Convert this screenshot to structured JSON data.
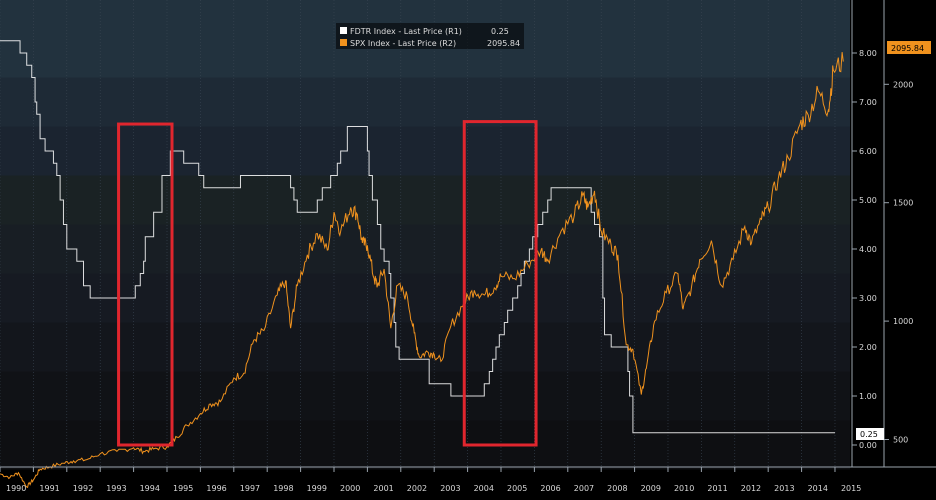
{
  "chart_data": {
    "type": "line",
    "legend": {
      "placement": "top-center",
      "entries": [
        {
          "label": "FDTR Index - Last Price (R1)",
          "last_value": "0.25",
          "color": "#ffffff"
        },
        {
          "label": "SPX Index - Last Price (R2)",
          "last_value": "2095.84",
          "color": "#f0921e"
        }
      ]
    },
    "x_axis": {
      "ticks": [
        "1990",
        "1991",
        "1992",
        "1993",
        "1994",
        "1995",
        "1996",
        "1997",
        "1998",
        "1999",
        "2000",
        "2001",
        "2002",
        "2003",
        "2004",
        "2005",
        "2006",
        "2007",
        "2008",
        "2009",
        "2010",
        "2011",
        "2012",
        "2013",
        "2014",
        "2015"
      ],
      "range": [
        1990.0,
        2015.3
      ]
    },
    "y_axis_rate": {
      "ticks": [
        "0.00",
        "1.00",
        "2.00",
        "3.00",
        "4.00",
        "5.00",
        "6.00",
        "7.00",
        "8.00"
      ],
      "range": [
        0,
        8
      ]
    },
    "y_axis_spx": {
      "ticks": [
        "500",
        "1000",
        "1500",
        "2000"
      ],
      "range": [
        250,
        2130
      ]
    },
    "last_value_labels": {
      "fdtr": "0.25",
      "spx": "2095.84"
    },
    "series": [
      {
        "name": "FDTR Index - Last Price",
        "axis": "R1",
        "color": "#ffffff",
        "step": true,
        "points": [
          [
            1990.0,
            8.25
          ],
          [
            1990.5,
            8.25
          ],
          [
            1990.6,
            8.0
          ],
          [
            1990.8,
            7.75
          ],
          [
            1990.95,
            7.5
          ],
          [
            1991.05,
            7.0
          ],
          [
            1991.1,
            6.75
          ],
          [
            1991.2,
            6.25
          ],
          [
            1991.35,
            6.0
          ],
          [
            1991.6,
            5.75
          ],
          [
            1991.7,
            5.5
          ],
          [
            1991.8,
            5.0
          ],
          [
            1991.9,
            4.5
          ],
          [
            1992.0,
            4.0
          ],
          [
            1992.3,
            3.75
          ],
          [
            1992.5,
            3.25
          ],
          [
            1992.7,
            3.0
          ],
          [
            1994.05,
            3.25
          ],
          [
            1994.2,
            3.5
          ],
          [
            1994.3,
            3.75
          ],
          [
            1994.35,
            4.25
          ],
          [
            1994.6,
            4.75
          ],
          [
            1994.85,
            5.5
          ],
          [
            1995.1,
            6.0
          ],
          [
            1995.5,
            5.75
          ],
          [
            1995.95,
            5.5
          ],
          [
            1996.1,
            5.25
          ],
          [
            1997.2,
            5.5
          ],
          [
            1998.7,
            5.25
          ],
          [
            1998.8,
            5.0
          ],
          [
            1998.9,
            4.75
          ],
          [
            1999.5,
            5.0
          ],
          [
            1999.65,
            5.25
          ],
          [
            1999.9,
            5.5
          ],
          [
            2000.1,
            5.75
          ],
          [
            2000.2,
            6.0
          ],
          [
            2000.4,
            6.5
          ],
          [
            2001.0,
            6.0
          ],
          [
            2001.05,
            5.5
          ],
          [
            2001.15,
            5.0
          ],
          [
            2001.3,
            4.5
          ],
          [
            2001.4,
            4.0
          ],
          [
            2001.5,
            3.75
          ],
          [
            2001.65,
            3.5
          ],
          [
            2001.7,
            3.0
          ],
          [
            2001.8,
            2.5
          ],
          [
            2001.85,
            2.0
          ],
          [
            2001.95,
            1.75
          ],
          [
            2002.85,
            1.25
          ],
          [
            2003.5,
            1.0
          ],
          [
            2004.5,
            1.25
          ],
          [
            2004.65,
            1.5
          ],
          [
            2004.75,
            1.75
          ],
          [
            2004.85,
            2.0
          ],
          [
            2004.95,
            2.25
          ],
          [
            2005.1,
            2.5
          ],
          [
            2005.2,
            2.75
          ],
          [
            2005.35,
            3.0
          ],
          [
            2005.5,
            3.25
          ],
          [
            2005.6,
            3.5
          ],
          [
            2005.7,
            3.75
          ],
          [
            2005.85,
            4.0
          ],
          [
            2005.95,
            4.25
          ],
          [
            2006.1,
            4.5
          ],
          [
            2006.25,
            4.75
          ],
          [
            2006.4,
            5.0
          ],
          [
            2006.5,
            5.25
          ],
          [
            2007.7,
            4.75
          ],
          [
            2007.8,
            4.5
          ],
          [
            2007.95,
            4.25
          ],
          [
            2008.05,
            3.0
          ],
          [
            2008.1,
            2.25
          ],
          [
            2008.3,
            2.0
          ],
          [
            2008.8,
            1.5
          ],
          [
            2008.85,
            1.0
          ],
          [
            2008.95,
            0.25
          ],
          [
            2015.0,
            0.25
          ]
        ]
      },
      {
        "name": "SPX Index - Last Price",
        "axis": "R2",
        "color": "#f0921e",
        "step": false,
        "points": [
          [
            1990.0,
            355
          ],
          [
            1990.3,
            340
          ],
          [
            1990.55,
            360
          ],
          [
            1990.8,
            300
          ],
          [
            1991.0,
            330
          ],
          [
            1991.2,
            375
          ],
          [
            1991.5,
            385
          ],
          [
            1991.9,
            400
          ],
          [
            1992.2,
            410
          ],
          [
            1992.6,
            415
          ],
          [
            1993.0,
            440
          ],
          [
            1993.5,
            450
          ],
          [
            1994.0,
            465
          ],
          [
            1994.3,
            450
          ],
          [
            1994.6,
            460
          ],
          [
            1995.0,
            470
          ],
          [
            1995.3,
            510
          ],
          [
            1995.6,
            560
          ],
          [
            1996.0,
            610
          ],
          [
            1996.3,
            650
          ],
          [
            1996.6,
            660
          ],
          [
            1997.0,
            760
          ],
          [
            1997.3,
            780
          ],
          [
            1997.6,
            920
          ],
          [
            1997.9,
            960
          ],
          [
            1998.3,
            1110
          ],
          [
            1998.55,
            1170
          ],
          [
            1998.7,
            970
          ],
          [
            1998.9,
            1150
          ],
          [
            1999.2,
            1280
          ],
          [
            1999.5,
            1370
          ],
          [
            1999.8,
            1300
          ],
          [
            2000.0,
            1460
          ],
          [
            2000.2,
            1380
          ],
          [
            2000.5,
            1480
          ],
          [
            2000.7,
            1450
          ],
          [
            2000.85,
            1330
          ],
          [
            2001.0,
            1320
          ],
          [
            2001.2,
            1180
          ],
          [
            2001.3,
            1150
          ],
          [
            2001.5,
            1220
          ],
          [
            2001.7,
            970
          ],
          [
            2001.9,
            1150
          ],
          [
            2002.2,
            1100
          ],
          [
            2002.4,
            950
          ],
          [
            2002.55,
            850
          ],
          [
            2002.8,
            870
          ],
          [
            2003.0,
            860
          ],
          [
            2003.2,
            830
          ],
          [
            2003.5,
            980
          ],
          [
            2003.9,
            1080
          ],
          [
            2004.2,
            1130
          ],
          [
            2004.5,
            1110
          ],
          [
            2004.8,
            1140
          ],
          [
            2005.0,
            1190
          ],
          [
            2005.4,
            1180
          ],
          [
            2005.8,
            1240
          ],
          [
            2006.2,
            1300
          ],
          [
            2006.4,
            1260
          ],
          [
            2006.8,
            1380
          ],
          [
            2007.2,
            1450
          ],
          [
            2007.45,
            1530
          ],
          [
            2007.6,
            1480
          ],
          [
            2007.8,
            1550
          ],
          [
            2008.0,
            1380
          ],
          [
            2008.3,
            1320
          ],
          [
            2008.5,
            1280
          ],
          [
            2008.75,
            900
          ],
          [
            2008.95,
            880
          ],
          [
            2009.2,
            690
          ],
          [
            2009.35,
            800
          ],
          [
            2009.6,
            1000
          ],
          [
            2009.95,
            1120
          ],
          [
            2010.3,
            1200
          ],
          [
            2010.45,
            1050
          ],
          [
            2010.7,
            1140
          ],
          [
            2010.95,
            1260
          ],
          [
            2011.3,
            1340
          ],
          [
            2011.6,
            1150
          ],
          [
            2011.95,
            1260
          ],
          [
            2012.3,
            1400
          ],
          [
            2012.5,
            1330
          ],
          [
            2012.8,
            1430
          ],
          [
            2013.0,
            1480
          ],
          [
            2013.3,
            1600
          ],
          [
            2013.6,
            1690
          ],
          [
            2013.95,
            1830
          ],
          [
            2014.2,
            1870
          ],
          [
            2014.5,
            1970
          ],
          [
            2014.8,
            1890
          ],
          [
            2014.95,
            2060
          ],
          [
            2015.25,
            2095.84
          ]
        ]
      }
    ],
    "annotations": [
      {
        "type": "box",
        "color": "#e0262e",
        "x_range": [
          1993.55,
          1995.15
        ],
        "y_range_rate": [
          0.0,
          6.55
        ]
      },
      {
        "type": "box",
        "color": "#e0262e",
        "x_range": [
          2003.9,
          2006.05
        ],
        "y_range_rate": [
          0.0,
          6.6
        ]
      }
    ]
  }
}
